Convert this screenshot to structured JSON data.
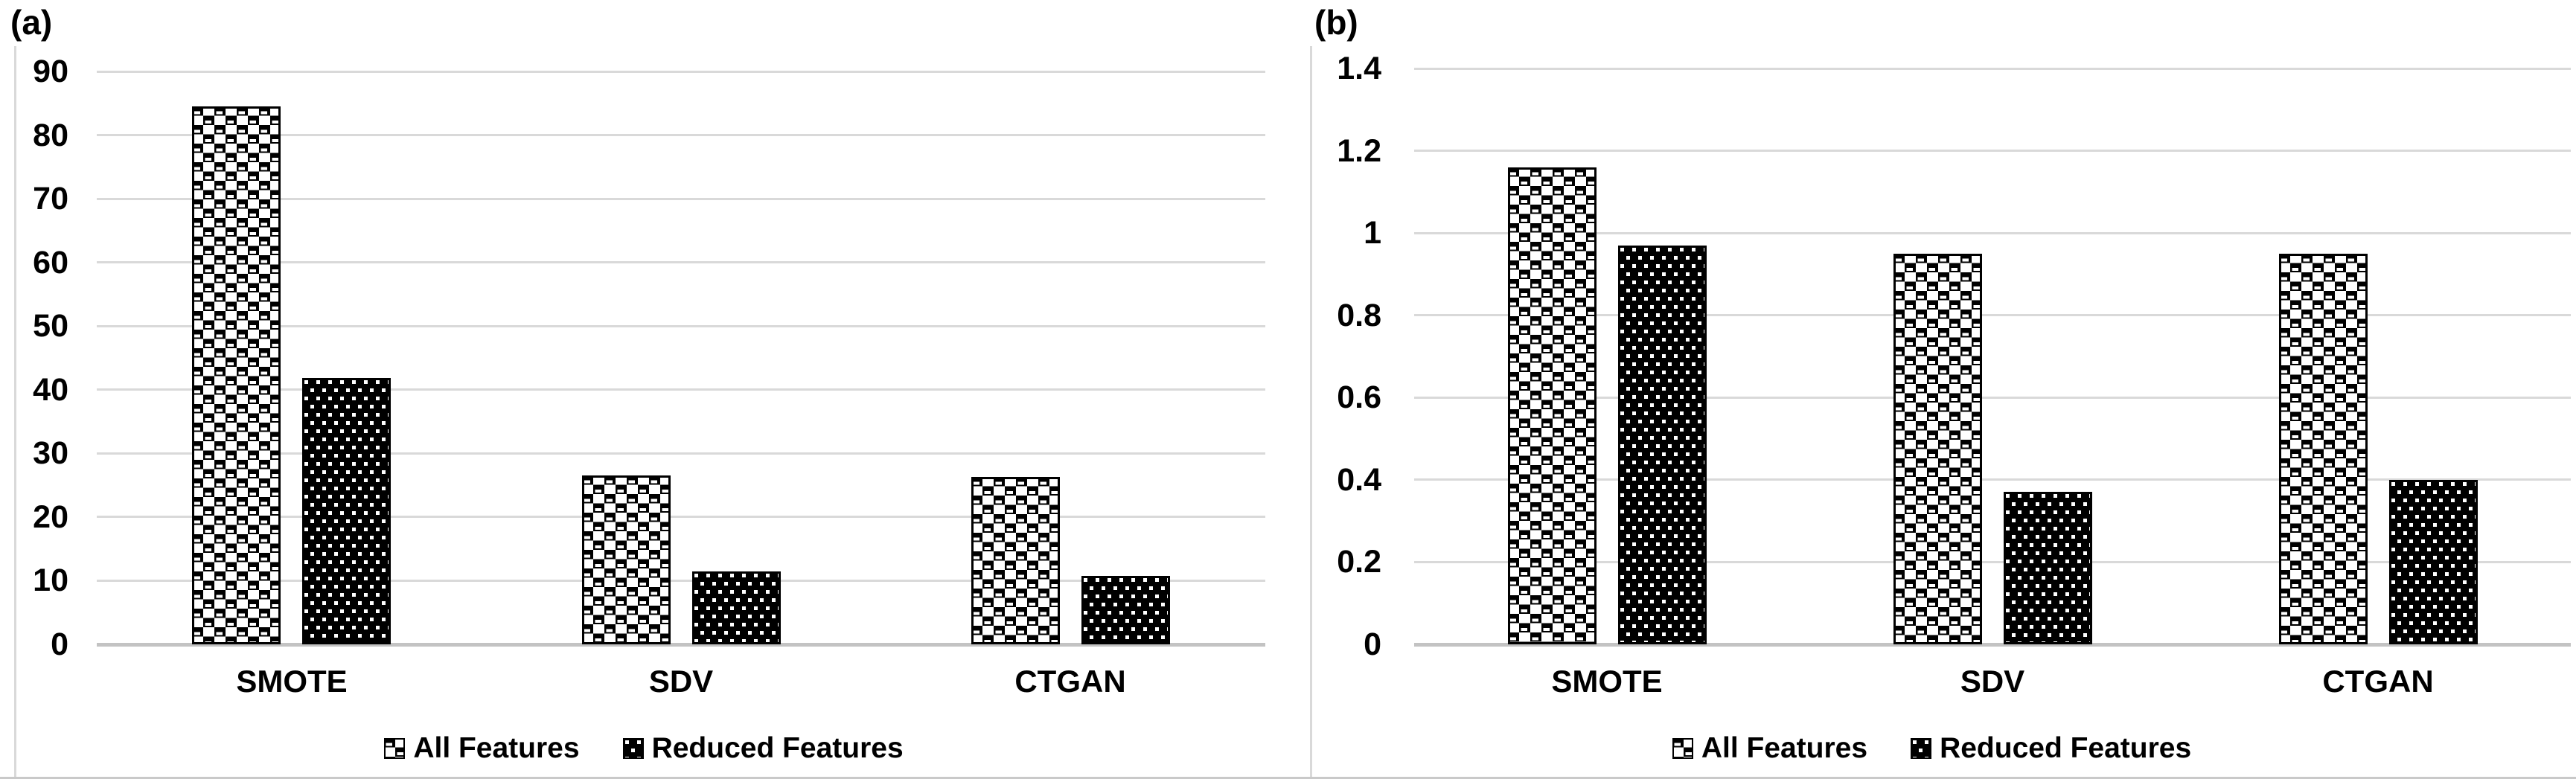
{
  "figure": {
    "background": "#ffffff",
    "panel_labels": [
      "(a)",
      "(b)"
    ]
  },
  "colors": {
    "bar_fill": "#000000",
    "bar_pattern_background": "#ffffff",
    "gridline": "#d9d9d9",
    "axis_line": "#c3c3c3",
    "panel_border": "#d9d9d9",
    "text": "#000000",
    "background": "#ffffff"
  },
  "legend": {
    "items": [
      {
        "label": "All Features",
        "pattern": "checkerboard"
      },
      {
        "label": "Reduced Features",
        "pattern": "polka-dots"
      }
    ]
  },
  "chart_data": [
    {
      "type": "bar",
      "panel_label": "(a)",
      "title": "",
      "xlabel": "",
      "ylabel": "",
      "categories": [
        "SMOTE",
        "SDV",
        "CTGAN"
      ],
      "series": [
        {
          "name": "All Features",
          "pattern": "checkerboard",
          "values": [
            84.5,
            26.5,
            26.3
          ]
        },
        {
          "name": "Reduced Features",
          "pattern": "polka-dots",
          "values": [
            41.8,
            11.4,
            10.7
          ]
        }
      ],
      "ylim": [
        0,
        90
      ],
      "yticks": [
        0,
        10,
        20,
        30,
        40,
        50,
        60,
        70,
        80,
        90
      ],
      "ytick_labels": [
        "0",
        "10",
        "20",
        "30",
        "40",
        "50",
        "60",
        "70",
        "80",
        "90"
      ],
      "grid": "horizontal",
      "legend_position": "bottom"
    },
    {
      "type": "bar",
      "panel_label": "(b)",
      "title": "",
      "xlabel": "",
      "ylabel": "",
      "categories": [
        "SMOTE",
        "SDV",
        "CTGAN"
      ],
      "series": [
        {
          "name": "All Features",
          "pattern": "checkerboard",
          "values": [
            1.16,
            0.95,
            0.95
          ]
        },
        {
          "name": "Reduced Features",
          "pattern": "polka-dots",
          "values": [
            0.97,
            0.37,
            0.4
          ]
        }
      ],
      "ylim": [
        0,
        1.4
      ],
      "yticks": [
        0,
        0.2,
        0.4,
        0.6,
        0.8,
        1,
        1.2,
        1.4
      ],
      "ytick_labels": [
        "0",
        "0.2",
        "0.4",
        "0.6",
        "0.8",
        "1",
        "1.2",
        "1.4"
      ],
      "grid": "horizontal",
      "legend_position": "bottom"
    }
  ]
}
